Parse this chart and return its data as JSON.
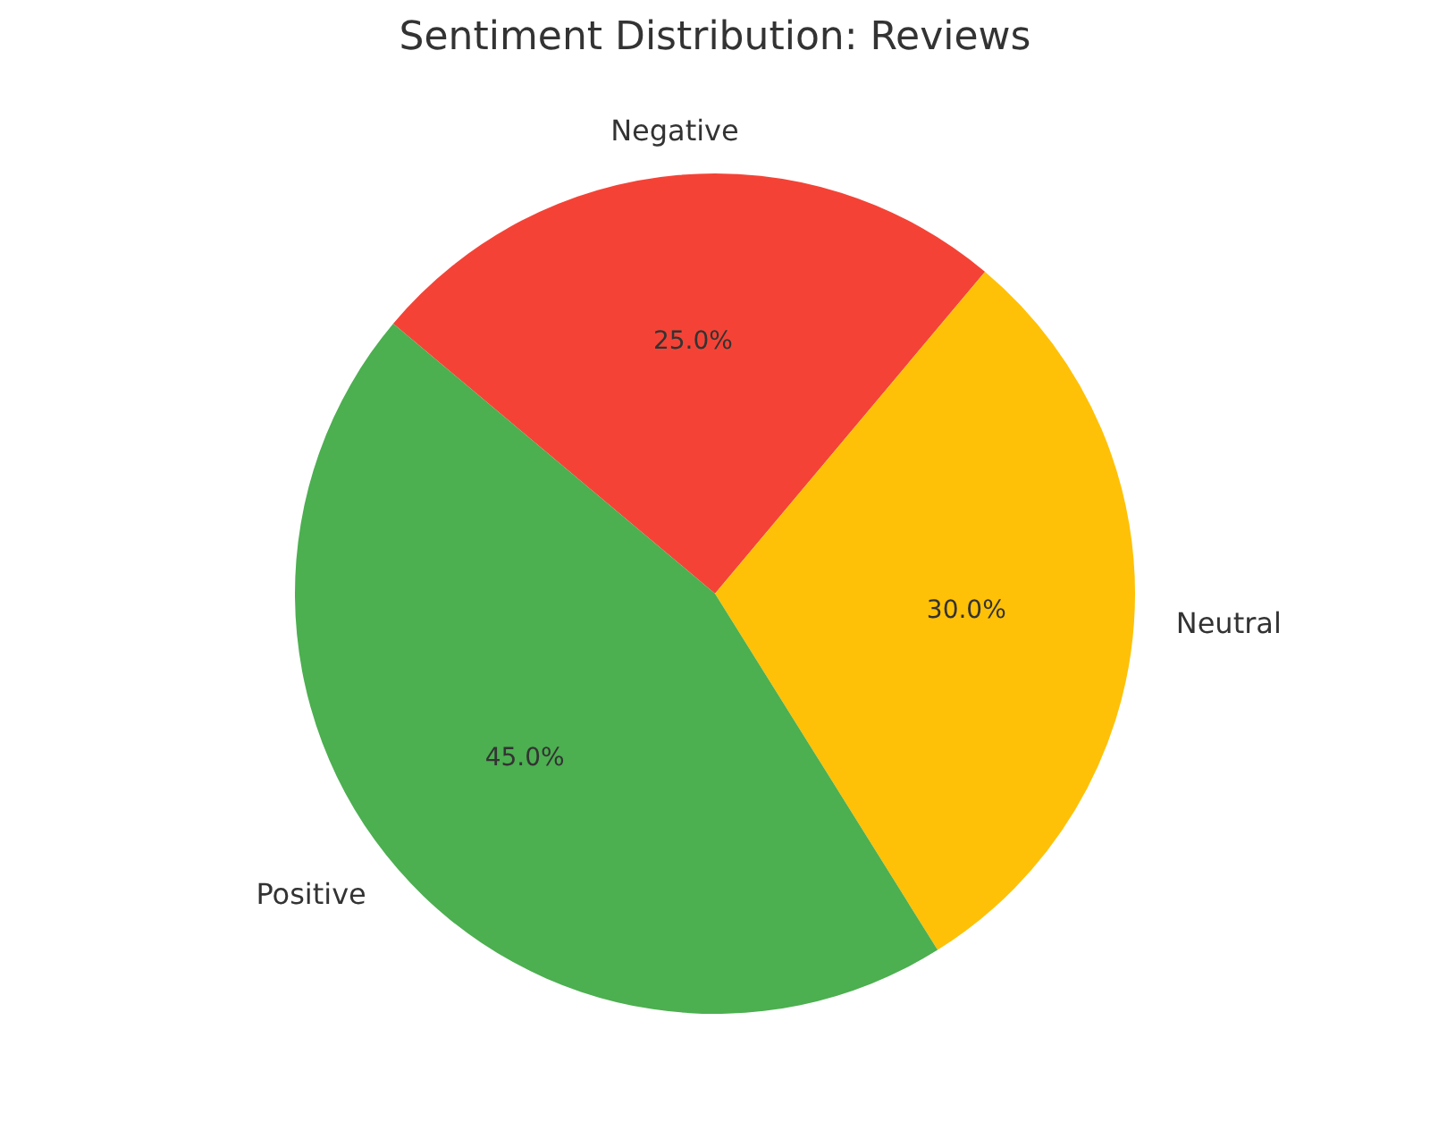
{
  "chart_data": {
    "type": "pie",
    "title": "Sentiment Distribution: Reviews",
    "categories": [
      "Negative",
      "Neutral",
      "Positive"
    ],
    "values": [
      25,
      30,
      45
    ],
    "colors": [
      "#f44336",
      "#ffc107",
      "#4caf50"
    ],
    "value_labels": [
      "25.0%",
      "30.0%",
      "45.0%"
    ],
    "legend": false
  }
}
